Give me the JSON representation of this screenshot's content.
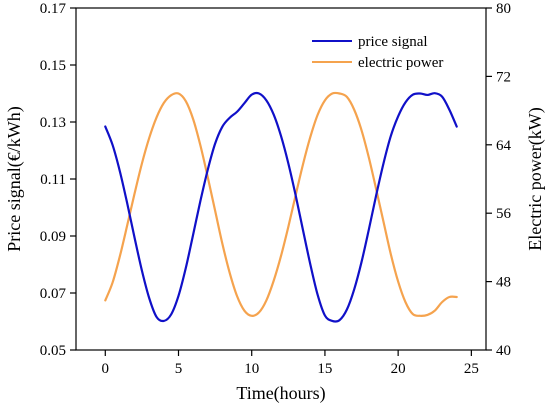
{
  "chart_data": {
    "type": "line",
    "title": "",
    "xlabel": "Time(hours)",
    "ylabel_left": "Price signal(€/kWh)",
    "ylabel_right": "Electric power(kW)",
    "xlim": [
      -2,
      26
    ],
    "ylim_left": [
      0.05,
      0.17
    ],
    "ylim_right": [
      40,
      80
    ],
    "xticks": [
      0,
      5,
      10,
      15,
      20,
      25
    ],
    "xtick_labels": [
      "0",
      "5",
      "10",
      "15",
      "20",
      "25"
    ],
    "yticks_left": [
      0.05,
      0.07,
      0.09,
      0.11,
      0.13,
      0.15,
      0.17
    ],
    "ytick_labels_left": [
      "0.05",
      "0.07",
      "0.09",
      "0.11",
      "0.13",
      "0.15",
      "0.17"
    ],
    "yticks_right": [
      40,
      48,
      56,
      64,
      72,
      80
    ],
    "ytick_labels_right": [
      "40",
      "48",
      "56",
      "64",
      "72",
      "80"
    ],
    "grid": false,
    "legend_position": "top-right",
    "series": [
      {
        "name": "price signal",
        "axis": "left",
        "color": "#1010c8",
        "x": [
          0,
          0.5,
          1,
          1.5,
          2,
          2.5,
          3,
          3.5,
          4,
          4.5,
          5,
          5.5,
          6,
          6.5,
          7,
          7.5,
          8,
          8.5,
          9,
          9.5,
          10,
          10.5,
          11,
          11.5,
          12,
          12.5,
          13,
          13.5,
          14,
          14.5,
          15,
          15.5,
          16,
          16.5,
          17,
          17.5,
          18,
          18.5,
          19,
          19.5,
          20,
          20.5,
          21,
          21.5,
          22,
          22.5,
          23,
          23.5,
          24
        ],
        "y": [
          0.1284,
          0.1219,
          0.1126,
          0.1014,
          0.0894,
          0.0779,
          0.0682,
          0.0616,
          0.0602,
          0.0625,
          0.069,
          0.0788,
          0.0905,
          0.1024,
          0.1133,
          0.1224,
          0.1284,
          0.1315,
          0.1336,
          0.1366,
          0.1396,
          0.14,
          0.1376,
          0.1326,
          0.1251,
          0.1155,
          0.1043,
          0.0921,
          0.0801,
          0.0694,
          0.0621,
          0.0602,
          0.0605,
          0.0642,
          0.0713,
          0.0809,
          0.0923,
          0.1043,
          0.1155,
          0.1251,
          0.132,
          0.1369,
          0.1396,
          0.14,
          0.1395,
          0.1401,
          0.1389,
          0.1343,
          0.1284
        ]
      },
      {
        "name": "electric power",
        "axis": "right",
        "color": "#f5a34e",
        "x": [
          0,
          0.5,
          1,
          1.5,
          2,
          2.5,
          3,
          3.5,
          4,
          4.5,
          5,
          5.5,
          6,
          6.5,
          7,
          7.5,
          8,
          8.5,
          9,
          9.5,
          10,
          10.5,
          11,
          11.5,
          12,
          12.5,
          13,
          13.5,
          14,
          14.5,
          15,
          15.5,
          16,
          16.5,
          17,
          17.5,
          18,
          18.5,
          19,
          19.5,
          20,
          20.5,
          21,
          21.5,
          22,
          22.5,
          23,
          23.5,
          24
        ],
        "y": [
          45.8,
          47.9,
          51.0,
          54.6,
          58.3,
          61.8,
          64.8,
          67.2,
          68.9,
          69.8,
          70.0,
          69.1,
          67.0,
          63.9,
          60.2,
          56.3,
          52.4,
          49.0,
          46.3,
          44.6,
          44.0,
          44.4,
          45.8,
          48.1,
          51.0,
          54.4,
          58.1,
          61.7,
          64.9,
          67.5,
          69.2,
          70.0,
          70.0,
          69.6,
          68.1,
          65.7,
          62.5,
          58.8,
          55.0,
          51.2,
          48.0,
          45.6,
          44.2,
          44.0,
          44.1,
          44.6,
          45.6,
          46.2,
          46.2
        ]
      }
    ]
  }
}
